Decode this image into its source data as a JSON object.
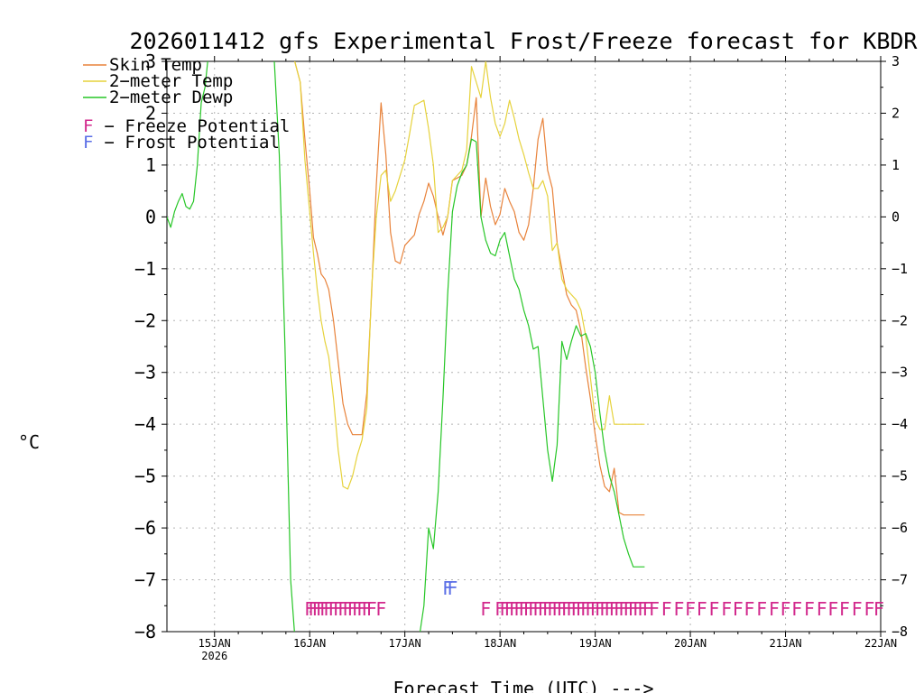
{
  "chart_data": {
    "type": "line",
    "title": "2026011412 gfs Experimental Frost/Freeze forecast for KBDR",
    "xlabel": "Forecast Time (UTC) --->",
    "ylabel": "°C",
    "xlim": [
      -0.5,
      7.0
    ],
    "ylim": [
      -8,
      3
    ],
    "grid": true,
    "x_unit": "days since 15JAN 00Z",
    "x_ticks": [
      {
        "x": 0,
        "label": "15JAN",
        "sublabel": "2026"
      },
      {
        "x": 1,
        "label": "16JAN"
      },
      {
        "x": 2,
        "label": "17JAN"
      },
      {
        "x": 3,
        "label": "18JAN"
      },
      {
        "x": 4,
        "label": "19JAN"
      },
      {
        "x": 5,
        "label": "20JAN"
      },
      {
        "x": 6,
        "label": "21JAN"
      },
      {
        "x": 7,
        "label": "22JAN"
      }
    ],
    "y_ticks": [
      3,
      2,
      1,
      0,
      -1,
      -2,
      -3,
      -4,
      -5,
      -6,
      -7,
      -8
    ],
    "y_tick_labels": [
      "3",
      "2",
      "1",
      "0",
      "−1",
      "−2",
      "−3",
      "−4",
      "−5",
      "−6",
      "−7",
      "−8"
    ],
    "y_tick_labels_right": [
      "3",
      "2",
      "1",
      "0",
      "−1",
      "−2",
      "−3",
      "−4",
      "−5",
      "−6",
      "−7",
      "−8"
    ],
    "legend": {
      "placement": "top-left",
      "entries": [
        {
          "label": "Skin Temp",
          "color": "#e8823a"
        },
        {
          "label": "2−meter Temp",
          "color": "#e6d23c"
        },
        {
          "label": "2−meter Dewp",
          "color": "#26c626"
        },
        {
          "marker": "F",
          "label": " − Freeze Potential",
          "color": "#d2288c"
        },
        {
          "marker": "F",
          "label": " − Frost Potential",
          "color": "#5a6ee6"
        }
      ]
    },
    "series": [
      {
        "name": "Skin Temp",
        "color": "#e8823a",
        "x": [
          0.61,
          0.7,
          0.8,
          0.9,
          0.95,
          1.0,
          1.04,
          1.08,
          1.12,
          1.16,
          1.2,
          1.25,
          1.3,
          1.35,
          1.4,
          1.45,
          1.5,
          1.55,
          1.6,
          1.65,
          1.7,
          1.75,
          1.8,
          1.85,
          1.9,
          1.95,
          2.0,
          2.05,
          2.1,
          2.15,
          2.2,
          2.25,
          2.3,
          2.35,
          2.4,
          2.45,
          2.5,
          2.55,
          2.6,
          2.65,
          2.7,
          2.75,
          2.8,
          2.85,
          2.9,
          2.95,
          3.0,
          3.05,
          3.1,
          3.15,
          3.2,
          3.25,
          3.3,
          3.35,
          3.4,
          3.45,
          3.5,
          3.55,
          3.6,
          3.65,
          3.7,
          3.75,
          3.8,
          3.85,
          3.9,
          3.95,
          4.0,
          4.05,
          4.1,
          4.15,
          4.2,
          4.25,
          4.3,
          4.35,
          4.4,
          4.45,
          4.5,
          4.52
        ],
        "y": [
          3.3,
          3.3,
          3.3,
          2.6,
          1.5,
          0.5,
          -0.4,
          -0.7,
          -1.1,
          -1.2,
          -1.4,
          -2.0,
          -2.8,
          -3.6,
          -4.0,
          -4.2,
          -4.2,
          -4.2,
          -3.4,
          -1.5,
          0.6,
          2.2,
          1.2,
          -0.3,
          -0.85,
          -0.9,
          -0.55,
          -0.45,
          -0.35,
          0.05,
          0.3,
          0.65,
          0.4,
          0.0,
          -0.35,
          0.0,
          0.7,
          0.75,
          0.8,
          1.0,
          1.55,
          2.3,
          0.0,
          0.75,
          0.2,
          -0.15,
          0.05,
          0.55,
          0.3,
          0.1,
          -0.3,
          -0.45,
          -0.15,
          0.55,
          1.5,
          1.9,
          0.9,
          0.55,
          -0.5,
          -1.0,
          -1.5,
          -1.7,
          -1.8,
          -2.2,
          -2.9,
          -3.5,
          -4.2,
          -4.8,
          -5.2,
          -5.3,
          -4.85,
          -5.7,
          -5.75,
          -5.75,
          -5.75,
          -5.75,
          -5.75,
          -5.75
        ]
      },
      {
        "name": "2−meter Temp",
        "color": "#e6d23c",
        "x": [
          0.61,
          0.7,
          0.8,
          0.9,
          0.95,
          1.0,
          1.04,
          1.08,
          1.12,
          1.16,
          1.2,
          1.25,
          1.3,
          1.35,
          1.4,
          1.45,
          1.5,
          1.55,
          1.6,
          1.65,
          1.7,
          1.75,
          1.8,
          1.85,
          1.9,
          1.95,
          2.0,
          2.05,
          2.1,
          2.15,
          2.2,
          2.25,
          2.3,
          2.35,
          2.4,
          2.45,
          2.5,
          2.55,
          2.6,
          2.65,
          2.7,
          2.75,
          2.8,
          2.85,
          2.9,
          2.95,
          3.0,
          3.05,
          3.1,
          3.15,
          3.2,
          3.25,
          3.3,
          3.35,
          3.4,
          3.45,
          3.5,
          3.55,
          3.6,
          3.65,
          3.7,
          3.75,
          3.8,
          3.85,
          3.9,
          3.95,
          4.0,
          4.05,
          4.1,
          4.15,
          4.2,
          4.25,
          4.3,
          4.35,
          4.4,
          4.45,
          4.5,
          4.52
        ],
        "y": [
          3.3,
          3.3,
          3.3,
          2.6,
          1.1,
          0.1,
          -0.7,
          -1.4,
          -2.0,
          -2.4,
          -2.7,
          -3.5,
          -4.5,
          -5.2,
          -5.25,
          -5.0,
          -4.6,
          -4.3,
          -3.7,
          -1.4,
          0.0,
          0.8,
          0.9,
          0.3,
          0.5,
          0.8,
          1.1,
          1.6,
          2.15,
          2.2,
          2.25,
          1.7,
          1.0,
          -0.3,
          -0.2,
          0.0,
          0.7,
          0.8,
          0.9,
          1.3,
          2.9,
          2.6,
          2.3,
          3.0,
          2.3,
          1.8,
          1.55,
          1.8,
          2.25,
          1.9,
          1.5,
          1.2,
          0.85,
          0.55,
          0.55,
          0.7,
          0.4,
          -0.65,
          -0.5,
          -1.2,
          -1.4,
          -1.5,
          -1.6,
          -1.8,
          -2.3,
          -3.1,
          -3.9,
          -4.1,
          -4.1,
          -3.45,
          -4.0,
          -4.0,
          -4.0,
          -4.0,
          -4.0,
          -4.0,
          -4.0,
          -4.0
        ]
      },
      {
        "name": "2−meter Dewp",
        "color": "#26c626",
        "x": [
          -0.5,
          -0.46,
          -0.42,
          -0.38,
          -0.34,
          -0.3,
          -0.26,
          -0.22,
          -0.18,
          -0.14,
          -0.1,
          -0.06,
          -0.02,
          0.02,
          0.08,
          0.14,
          0.2,
          0.26,
          0.32,
          0.38,
          0.44,
          0.5,
          0.56,
          0.62,
          0.68,
          0.74,
          0.8,
          0.86,
          0.92,
          0.98,
          1.04,
          1.1,
          1.16,
          1.22,
          1.28,
          1.34,
          1.4,
          1.46,
          1.52,
          1.58,
          1.64,
          1.7,
          1.76,
          1.82,
          1.88,
          1.94,
          2.0,
          2.06,
          2.12,
          2.2,
          2.25,
          2.3,
          2.35,
          2.4,
          2.45,
          2.5,
          2.55,
          2.6,
          2.65,
          2.7,
          2.75,
          2.8,
          2.85,
          2.9,
          2.95,
          3.0,
          3.05,
          3.1,
          3.15,
          3.2,
          3.25,
          3.3,
          3.35,
          3.4,
          3.45,
          3.5,
          3.55,
          3.6,
          3.65,
          3.7,
          3.75,
          3.8,
          3.85,
          3.9,
          3.95,
          4.0,
          4.05,
          4.1,
          4.15,
          4.2,
          4.25,
          4.3,
          4.35,
          4.4,
          4.45,
          4.5,
          4.52
        ],
        "y": [
          0.0,
          -0.2,
          0.1,
          0.3,
          0.45,
          0.2,
          0.15,
          0.3,
          1.0,
          2.2,
          2.5,
          3.2,
          3.3,
          3.3,
          3.3,
          3.3,
          3.3,
          3.3,
          3.3,
          3.3,
          3.3,
          3.3,
          3.3,
          3.3,
          1.2,
          -2.5,
          -7.0,
          -8.5,
          -8.5,
          -8.5,
          -8.5,
          -8.5,
          -8.5,
          -8.5,
          -8.5,
          -8.5,
          -8.5,
          -8.5,
          -8.5,
          -8.5,
          -8.5,
          -8.5,
          -8.5,
          -8.5,
          -8.5,
          -8.5,
          -8.5,
          -8.5,
          -8.5,
          -7.5,
          -6.0,
          -6.4,
          -5.3,
          -3.5,
          -1.5,
          0.1,
          0.6,
          0.85,
          1.0,
          1.5,
          1.45,
          0.0,
          -0.45,
          -0.7,
          -0.75,
          -0.45,
          -0.3,
          -0.75,
          -1.2,
          -1.4,
          -1.8,
          -2.1,
          -2.55,
          -2.5,
          -3.5,
          -4.5,
          -5.1,
          -4.4,
          -2.4,
          -2.75,
          -2.4,
          -2.1,
          -2.3,
          -2.25,
          -2.5,
          -3.0,
          -3.8,
          -4.5,
          -5.0,
          -5.3,
          -5.75,
          -6.2,
          -6.5,
          -6.75,
          -6.75,
          -6.75,
          -6.75
        ]
      }
    ],
    "markers": {
      "freeze": {
        "label": "F",
        "color": "#d2288c",
        "y": -7.55,
        "x": [
          1.0,
          1.04,
          1.08,
          1.12,
          1.16,
          1.2,
          1.25,
          1.3,
          1.35,
          1.4,
          1.45,
          1.5,
          1.55,
          1.6,
          1.65,
          1.75,
          2.85,
          3.0,
          3.05,
          3.1,
          3.15,
          3.2,
          3.25,
          3.3,
          3.35,
          3.4,
          3.45,
          3.5,
          3.55,
          3.6,
          3.65,
          3.7,
          3.75,
          3.8,
          3.85,
          3.9,
          3.95,
          4.0,
          4.05,
          4.1,
          4.15,
          4.2,
          4.25,
          4.3,
          4.35,
          4.4,
          4.45,
          4.5,
          4.55,
          4.62,
          4.75,
          4.88,
          5.0,
          5.12,
          5.25,
          5.38,
          5.5,
          5.62,
          5.75,
          5.88,
          6.0,
          6.12,
          6.25,
          6.38,
          6.5,
          6.62,
          6.75,
          6.88,
          6.98
        ]
      },
      "frost": {
        "label": "F",
        "color": "#5a6ee6",
        "y": -7.15,
        "x": [
          2.45,
          2.5
        ]
      }
    }
  }
}
